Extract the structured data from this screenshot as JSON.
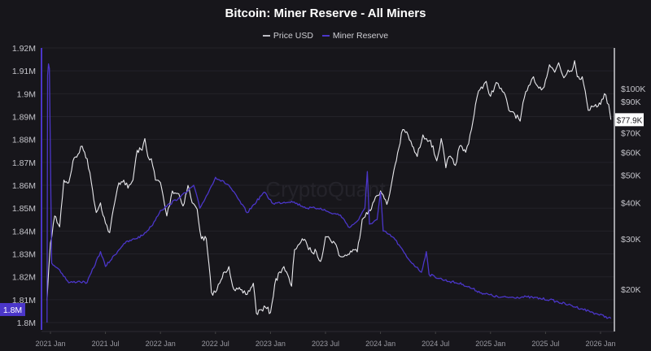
{
  "chart_data": {
    "type": "line",
    "title": "Bitcoin: Miner Reserve - All Miners",
    "legend_position": "top-center",
    "grid": true,
    "watermark": "CryptoQuant",
    "x_ticks": [
      "2021 Jan",
      "2021 Jul",
      "2022 Jan",
      "2022 Jul",
      "2023 Jan",
      "2023 Jul",
      "2024 Jan",
      "2024 Jul",
      "2025 Jan",
      "2025 Jul",
      "2026 Jan"
    ],
    "left_axis": {
      "scale": "linear",
      "ylim": [
        1.8,
        1.92
      ],
      "ticks": [
        "1.92M",
        "1.91M",
        "1.9M",
        "1.89M",
        "1.88M",
        "1.87M",
        "1.86M",
        "1.85M",
        "1.84M",
        "1.83M",
        "1.82M",
        "1.81M",
        "1.8M"
      ],
      "current_label": "1.8M"
    },
    "right_axis": {
      "scale": "log",
      "ticks": [
        {
          "label": "$100K",
          "v": 100000
        },
        {
          "label": "$90K",
          "v": 90000
        },
        {
          "label": "$70K",
          "v": 70000
        },
        {
          "label": "$60K",
          "v": 60000
        },
        {
          "label": "$50K",
          "v": 50000
        },
        {
          "label": "$40K",
          "v": 40000
        },
        {
          "label": "$30K",
          "v": 30000
        },
        {
          "label": "$20K",
          "v": 20000
        }
      ],
      "current_label": "$77.9K"
    },
    "series": [
      {
        "name": "Price USD",
        "axis": "right",
        "color": "#e8e8ec",
        "points": [
          [
            "2020-12-20",
            18300
          ],
          [
            "2021-01-01",
            29000
          ],
          [
            "2021-01-15",
            36000
          ],
          [
            "2021-02-01",
            33000
          ],
          [
            "2021-02-15",
            48000
          ],
          [
            "2021-03-01",
            47000
          ],
          [
            "2021-03-15",
            56000
          ],
          [
            "2021-04-01",
            59000
          ],
          [
            "2021-04-15",
            63000
          ],
          [
            "2021-05-01",
            57000
          ],
          [
            "2021-05-15",
            47000
          ],
          [
            "2021-06-01",
            37000
          ],
          [
            "2021-06-15",
            40000
          ],
          [
            "2021-07-01",
            34000
          ],
          [
            "2021-07-15",
            31500
          ],
          [
            "2021-08-01",
            40000
          ],
          [
            "2021-08-15",
            47000
          ],
          [
            "2021-09-01",
            48000
          ],
          [
            "2021-09-15",
            45000
          ],
          [
            "2021-10-01",
            48000
          ],
          [
            "2021-10-15",
            61000
          ],
          [
            "2021-11-01",
            61000
          ],
          [
            "2021-11-10",
            67000
          ],
          [
            "2021-11-20",
            58000
          ],
          [
            "2021-12-01",
            57000
          ],
          [
            "2021-12-15",
            48000
          ],
          [
            "2022-01-01",
            47000
          ],
          [
            "2022-01-22",
            36000
          ],
          [
            "2022-02-10",
            44000
          ],
          [
            "2022-03-01",
            43000
          ],
          [
            "2022-03-15",
            39000
          ],
          [
            "2022-04-01",
            46000
          ],
          [
            "2022-04-15",
            40000
          ],
          [
            "2022-05-01",
            38000
          ],
          [
            "2022-05-15",
            30000
          ],
          [
            "2022-06-01",
            30000
          ],
          [
            "2022-06-18",
            19500
          ],
          [
            "2022-07-01",
            19500
          ],
          [
            "2022-07-15",
            21000
          ],
          [
            "2022-08-01",
            23000
          ],
          [
            "2022-08-15",
            24000
          ],
          [
            "2022-09-01",
            20000
          ],
          [
            "2022-09-15",
            20000
          ],
          [
            "2022-10-01",
            19400
          ],
          [
            "2022-10-15",
            19200
          ],
          [
            "2022-11-05",
            21000
          ],
          [
            "2022-11-15",
            16500
          ],
          [
            "2022-12-01",
            17000
          ],
          [
            "2022-12-15",
            17300
          ],
          [
            "2023-01-01",
            16600
          ],
          [
            "2023-01-15",
            20800
          ],
          [
            "2023-02-01",
            23000
          ],
          [
            "2023-02-15",
            24000
          ],
          [
            "2023-03-10",
            20500
          ],
          [
            "2023-03-20",
            27500
          ],
          [
            "2023-04-01",
            28500
          ],
          [
            "2023-04-15",
            30000
          ],
          [
            "2023-05-01",
            28500
          ],
          [
            "2023-05-15",
            27000
          ],
          [
            "2023-06-01",
            27000
          ],
          [
            "2023-06-15",
            25000
          ],
          [
            "2023-07-01",
            30500
          ],
          [
            "2023-07-15",
            30000
          ],
          [
            "2023-08-01",
            29000
          ],
          [
            "2023-08-20",
            26000
          ],
          [
            "2023-09-01",
            26000
          ],
          [
            "2023-09-15",
            26500
          ],
          [
            "2023-10-01",
            27500
          ],
          [
            "2023-10-15",
            27000
          ],
          [
            "2023-11-01",
            35000
          ],
          [
            "2023-11-15",
            37000
          ],
          [
            "2023-12-01",
            38000
          ],
          [
            "2023-12-15",
            42000
          ],
          [
            "2024-01-01",
            44000
          ],
          [
            "2024-01-22",
            39500
          ],
          [
            "2024-02-01",
            43000
          ],
          [
            "2024-02-15",
            52000
          ],
          [
            "2024-03-01",
            62000
          ],
          [
            "2024-03-14",
            72000
          ],
          [
            "2024-04-01",
            69000
          ],
          [
            "2024-04-15",
            63000
          ],
          [
            "2024-05-01",
            58000
          ],
          [
            "2024-05-20",
            69000
          ],
          [
            "2024-06-01",
            67000
          ],
          [
            "2024-06-15",
            66000
          ],
          [
            "2024-07-05",
            56000
          ],
          [
            "2024-07-20",
            67000
          ],
          [
            "2024-08-05",
            53000
          ],
          [
            "2024-08-15",
            58000
          ],
          [
            "2024-09-06",
            54000
          ],
          [
            "2024-09-20",
            63000
          ],
          [
            "2024-10-10",
            60000
          ],
          [
            "2024-10-29",
            72000
          ],
          [
            "2024-11-12",
            88000
          ],
          [
            "2024-11-22",
            98000
          ],
          [
            "2024-12-05",
            100000
          ],
          [
            "2024-12-17",
            106000
          ],
          [
            "2025-01-01",
            94000
          ],
          [
            "2025-01-20",
            105000
          ],
          [
            "2025-02-01",
            100000
          ],
          [
            "2025-02-15",
            97000
          ],
          [
            "2025-03-01",
            84000
          ],
          [
            "2025-03-15",
            83000
          ],
          [
            "2025-04-08",
            77000
          ],
          [
            "2025-04-22",
            93000
          ],
          [
            "2025-05-10",
            103000
          ],
          [
            "2025-05-22",
            110000
          ],
          [
            "2025-06-05",
            102000
          ],
          [
            "2025-06-22",
            100000
          ],
          [
            "2025-07-01",
            107000
          ],
          [
            "2025-07-14",
            121000
          ],
          [
            "2025-08-01",
            114000
          ],
          [
            "2025-08-14",
            123000
          ],
          [
            "2025-09-01",
            109000
          ],
          [
            "2025-09-15",
            116000
          ],
          [
            "2025-10-01",
            118000
          ],
          [
            "2025-10-06",
            125000
          ],
          [
            "2025-10-15",
            110000
          ],
          [
            "2025-11-01",
            110000
          ],
          [
            "2025-11-21",
            84000
          ],
          [
            "2025-12-01",
            87000
          ],
          [
            "2025-12-15",
            88000
          ],
          [
            "2026-01-01",
            88000
          ],
          [
            "2026-01-14",
            96000
          ],
          [
            "2026-01-28",
            88000
          ],
          [
            "2026-02-05",
            77900
          ]
        ]
      },
      {
        "name": "Miner Reserve",
        "axis": "left",
        "color": "#4b36c9",
        "points": [
          [
            "2020-12-20",
            1.8
          ],
          [
            "2020-12-22",
            1.908
          ],
          [
            "2020-12-25",
            1.913
          ],
          [
            "2020-12-28",
            1.911
          ],
          [
            "2021-01-05",
            1.826
          ],
          [
            "2021-02-01",
            1.823
          ],
          [
            "2021-03-01",
            1.8174
          ],
          [
            "2021-04-01",
            1.818
          ],
          [
            "2021-05-01",
            1.8175
          ],
          [
            "2021-06-15",
            1.831
          ],
          [
            "2021-07-01",
            1.8245
          ],
          [
            "2021-09-01",
            1.8345
          ],
          [
            "2021-11-01",
            1.838
          ],
          [
            "2021-12-01",
            1.842
          ],
          [
            "2022-01-01",
            1.849
          ],
          [
            "2022-03-01",
            1.8545
          ],
          [
            "2022-04-01",
            1.8575
          ],
          [
            "2022-04-20",
            1.86
          ],
          [
            "2022-05-10",
            1.85
          ],
          [
            "2022-06-10",
            1.8575
          ],
          [
            "2022-07-01",
            1.8635
          ],
          [
            "2022-08-15",
            1.86
          ],
          [
            "2022-10-15",
            1.848
          ],
          [
            "2022-12-10",
            1.857
          ],
          [
            "2023-01-10",
            1.852
          ],
          [
            "2023-03-10",
            1.853
          ],
          [
            "2023-05-01",
            1.85
          ],
          [
            "2023-06-15",
            1.85
          ],
          [
            "2023-07-15",
            1.848
          ],
          [
            "2023-08-20",
            1.847
          ],
          [
            "2023-09-20",
            1.8415
          ],
          [
            "2023-10-20",
            1.845
          ],
          [
            "2023-11-10",
            1.85
          ],
          [
            "2023-11-18",
            1.866
          ],
          [
            "2023-11-25",
            1.843
          ],
          [
            "2023-12-20",
            1.845
          ],
          [
            "2024-01-01",
            1.857
          ],
          [
            "2024-01-10",
            1.84
          ],
          [
            "2024-02-15",
            1.837
          ],
          [
            "2024-04-01",
            1.828
          ],
          [
            "2024-05-15",
            1.822
          ],
          [
            "2024-06-01",
            1.831
          ],
          [
            "2024-06-10",
            1.821
          ],
          [
            "2024-08-01",
            1.8185
          ],
          [
            "2024-10-01",
            1.8167
          ],
          [
            "2024-12-01",
            1.813
          ],
          [
            "2025-02-01",
            1.811
          ],
          [
            "2025-05-01",
            1.8112
          ],
          [
            "2025-07-15",
            1.81
          ],
          [
            "2025-09-15",
            1.8078
          ],
          [
            "2025-11-01",
            1.806
          ],
          [
            "2025-12-15",
            1.804
          ],
          [
            "2026-02-05",
            1.8018
          ]
        ]
      }
    ]
  }
}
